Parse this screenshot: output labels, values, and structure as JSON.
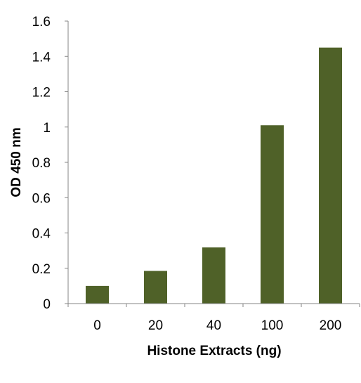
{
  "chart_data": {
    "type": "bar",
    "categories": [
      "0",
      "20",
      "40",
      "100",
      "200"
    ],
    "values": [
      0.1,
      0.185,
      0.318,
      1.01,
      1.45
    ],
    "xlabel": "Histone Extracts (ng)",
    "ylabel": "OD 450 nm",
    "ylim": [
      0,
      1.6
    ],
    "yticks": [
      "0",
      "0.2",
      "0.4",
      "0.6",
      "0.8",
      "1",
      "1.2",
      "1.4",
      "1.6"
    ],
    "bar_color": "#4f6128",
    "grid": false,
    "legend": "none"
  }
}
